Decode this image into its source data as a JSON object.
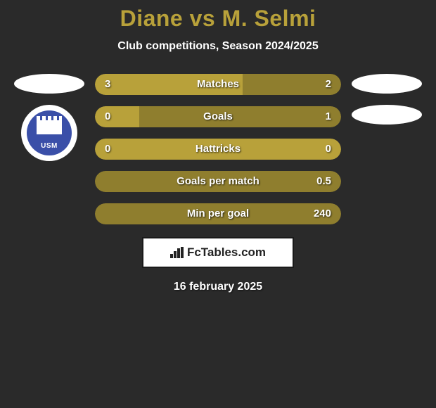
{
  "title": "Diane vs M. Selmi",
  "subtitle": "Club competitions, Season 2024/2025",
  "colors": {
    "bar_left": "#b8a13a",
    "bar_right": "#8f7e2e",
    "bar_empty": "#3a3a3a",
    "highlight_left_full": "#b8a13a",
    "badge_bg": "#3a4fa8"
  },
  "left_club": {
    "abbr": "USM"
  },
  "stats": [
    {
      "label": "Matches",
      "left_value": "3",
      "right_value": "2",
      "left_pct": 60,
      "right_pct": 40
    },
    {
      "label": "Goals",
      "left_value": "0",
      "right_value": "1",
      "left_pct": 18,
      "right_pct": 82
    },
    {
      "label": "Hattricks",
      "left_value": "0",
      "right_value": "0",
      "left_pct": 100,
      "right_pct": 0
    },
    {
      "label": "Goals per match",
      "left_value": "",
      "right_value": "0.5",
      "left_pct": 0,
      "right_pct": 100
    },
    {
      "label": "Min per goal",
      "left_value": "",
      "right_value": "240",
      "left_pct": 0,
      "right_pct": 100
    }
  ],
  "brand": "FcTables.com",
  "date": "16 february 2025"
}
